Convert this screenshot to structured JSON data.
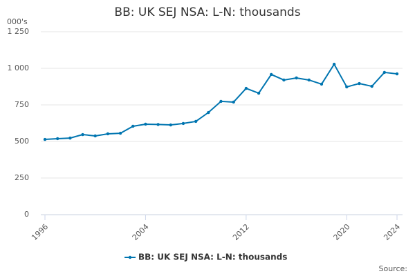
{
  "chart_data": {
    "type": "line",
    "title": "BB: UK SEJ NSA: L-N: thousands",
    "y_unit_label": "000's",
    "source_label": "Source:",
    "x": [
      1996,
      1997,
      1998,
      1999,
      2000,
      2001,
      2002,
      2003,
      2004,
      2005,
      2006,
      2007,
      2008,
      2009,
      2010,
      2011,
      2012,
      2013,
      2014,
      2015,
      2016,
      2017,
      2018,
      2019,
      2020,
      2021,
      2022,
      2023,
      2024
    ],
    "series": [
      {
        "name": "BB: UK SEJ NSA: L-N: thousands",
        "color": "#0075b0",
        "values": [
          514,
          519,
          523,
          547,
          538,
          552,
          556,
          604,
          618,
          616,
          613,
          623,
          637,
          698,
          774,
          769,
          863,
          830,
          958,
          920,
          934,
          920,
          892,
          1028,
          873,
          896,
          877,
          972,
          962
        ]
      }
    ],
    "xlim": [
      1995.67,
      2024.44
    ],
    "xticks": [
      1996,
      2004,
      2012,
      2020,
      2024
    ],
    "ylim": [
      0,
      1250
    ],
    "yticks": [
      0,
      250,
      500,
      750,
      {
        "value": 1000,
        "label": "1 000"
      },
      {
        "value": 1250,
        "label": "1 250"
      }
    ],
    "grid": true,
    "legend": "bottom"
  }
}
